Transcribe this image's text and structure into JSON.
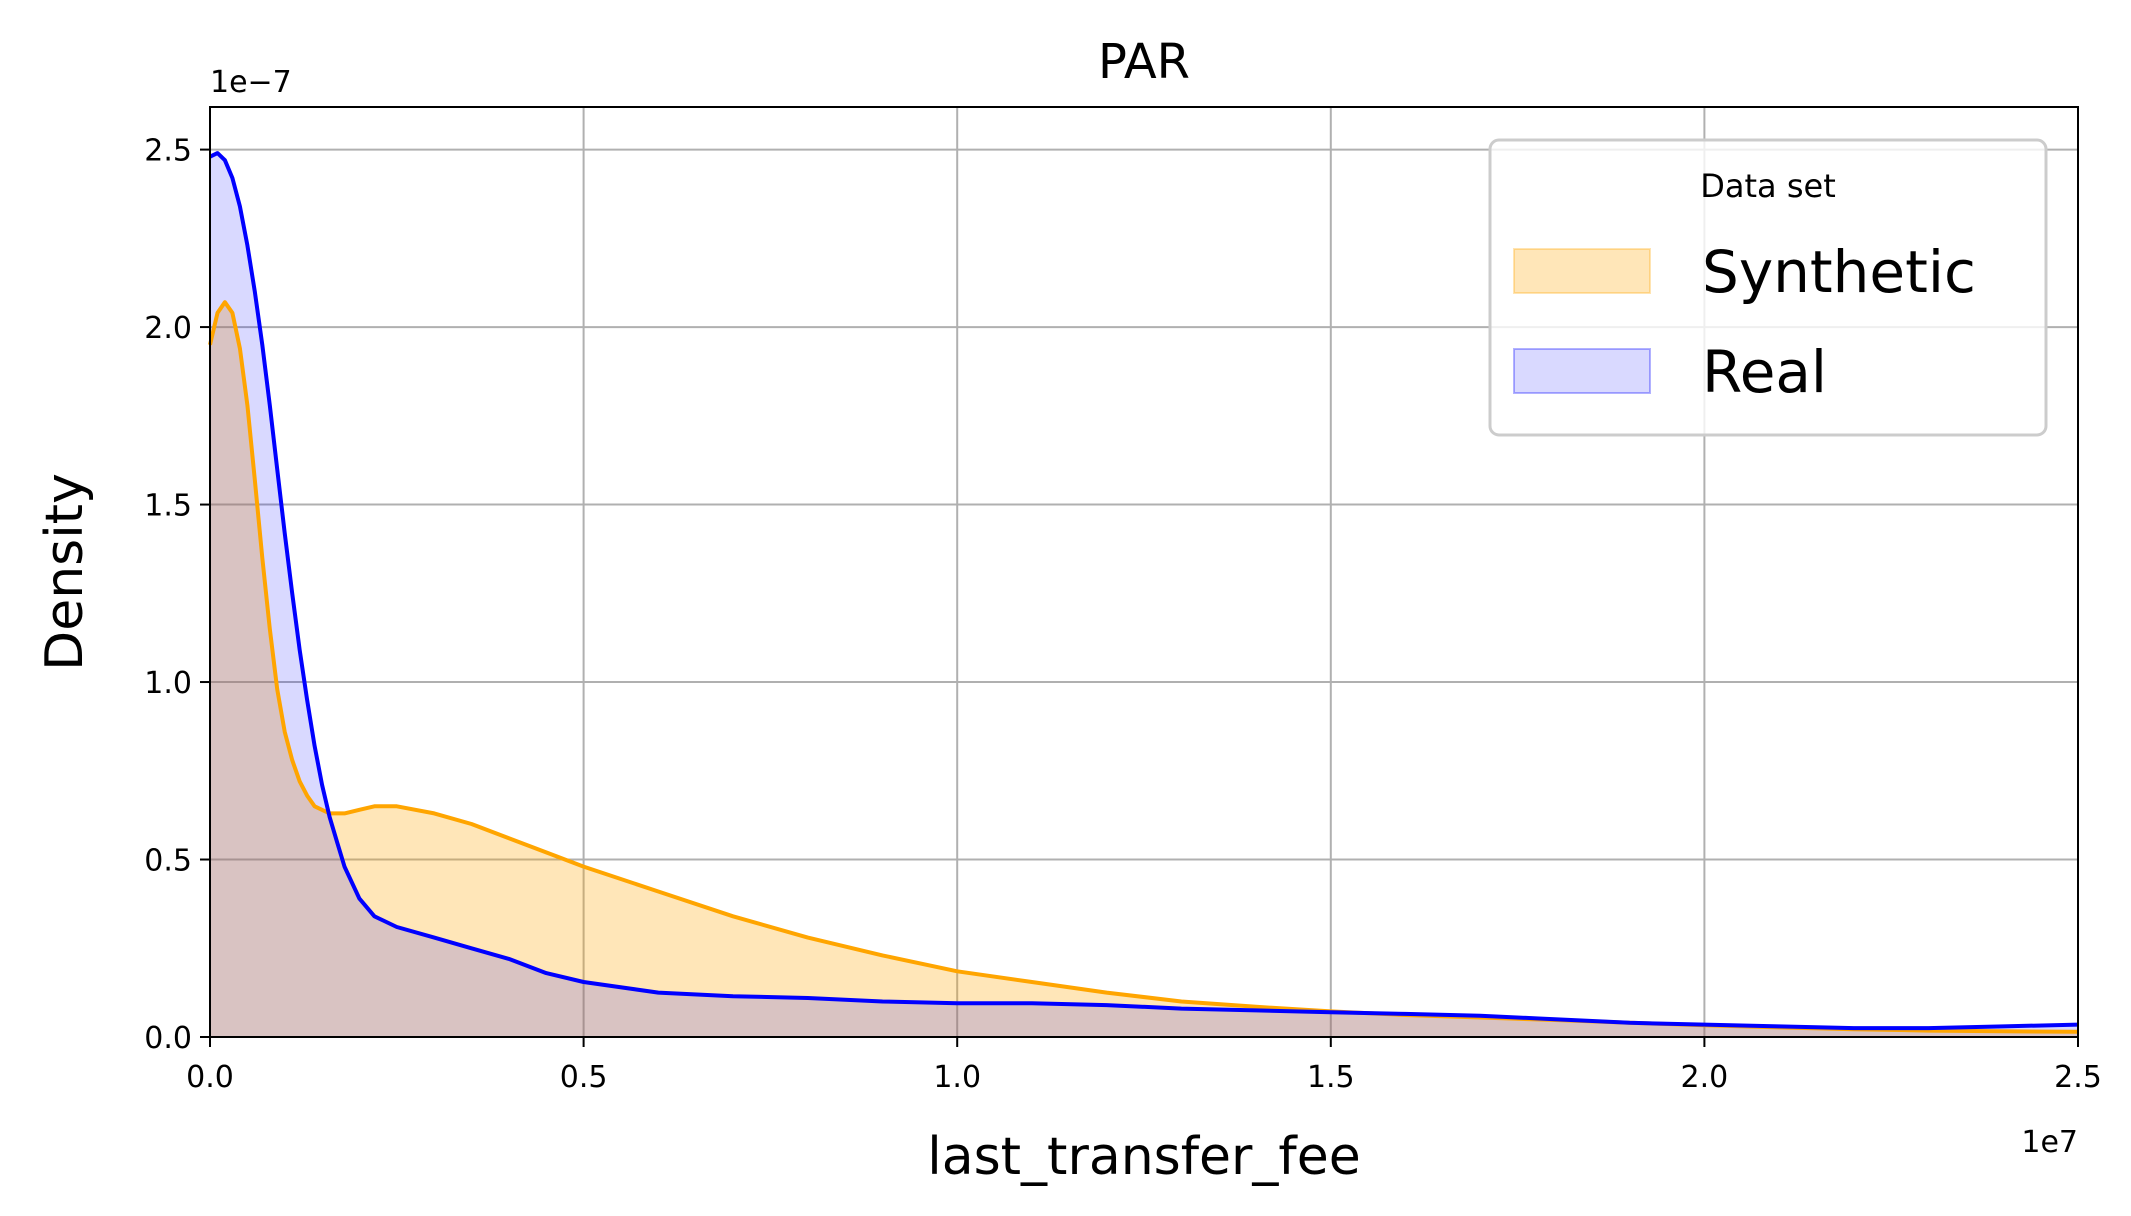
{
  "chart_data": {
    "type": "area",
    "title": "PAR",
    "xlabel": "last_transfer_fee",
    "ylabel": "Density",
    "x_offset_label": "1e7",
    "y_offset_label": "1e−7",
    "xlim": [
      0,
      2.5
    ],
    "ylim": [
      0,
      2.62
    ],
    "x_ticks": [
      0.0,
      0.5,
      1.0,
      1.5,
      2.0,
      2.5
    ],
    "x_tick_labels": [
      "0.0",
      "0.5",
      "1.0",
      "1.5",
      "2.0",
      "2.5"
    ],
    "y_ticks": [
      0.0,
      0.5,
      1.0,
      1.5,
      2.0,
      2.5
    ],
    "y_tick_labels": [
      "0.0",
      "0.5",
      "1.0",
      "1.5",
      "2.0",
      "2.5"
    ],
    "grid": true,
    "legend": {
      "title": "Data set",
      "placement": "top-right",
      "entries": [
        "Synthetic",
        "Real"
      ]
    },
    "series": [
      {
        "name": "Synthetic",
        "line_color": "#ffa500",
        "fill_color": "#ffa500",
        "x": [
          0.0,
          0.01,
          0.02,
          0.03,
          0.04,
          0.05,
          0.06,
          0.07,
          0.08,
          0.09,
          0.1,
          0.11,
          0.12,
          0.13,
          0.14,
          0.16,
          0.18,
          0.2,
          0.22,
          0.25,
          0.3,
          0.35,
          0.4,
          0.45,
          0.5,
          0.6,
          0.7,
          0.8,
          0.9,
          1.0,
          1.1,
          1.2,
          1.3,
          1.4,
          1.5,
          1.6,
          1.7,
          1.8,
          1.9,
          2.0,
          2.1,
          2.2,
          2.3,
          2.4,
          2.5
        ],
        "y": [
          1.95,
          2.04,
          2.07,
          2.04,
          1.94,
          1.78,
          1.57,
          1.35,
          1.15,
          0.98,
          0.86,
          0.78,
          0.72,
          0.68,
          0.65,
          0.63,
          0.63,
          0.64,
          0.65,
          0.65,
          0.63,
          0.6,
          0.56,
          0.52,
          0.48,
          0.41,
          0.34,
          0.28,
          0.23,
          0.185,
          0.155,
          0.125,
          0.1,
          0.085,
          0.072,
          0.062,
          0.055,
          0.048,
          0.04,
          0.033,
          0.027,
          0.022,
          0.018,
          0.016,
          0.015
        ]
      },
      {
        "name": "Real",
        "line_color": "#0000ff",
        "fill_color": "#0000ff",
        "x": [
          0.0,
          0.01,
          0.02,
          0.03,
          0.04,
          0.05,
          0.06,
          0.07,
          0.08,
          0.09,
          0.1,
          0.11,
          0.12,
          0.13,
          0.14,
          0.15,
          0.16,
          0.17,
          0.18,
          0.2,
          0.22,
          0.25,
          0.3,
          0.35,
          0.4,
          0.45,
          0.5,
          0.6,
          0.7,
          0.8,
          0.9,
          1.0,
          1.1,
          1.2,
          1.3,
          1.4,
          1.5,
          1.6,
          1.7,
          1.8,
          1.9,
          2.0,
          2.1,
          2.2,
          2.3,
          2.4,
          2.5
        ],
        "y": [
          2.48,
          2.49,
          2.47,
          2.42,
          2.34,
          2.23,
          2.1,
          1.95,
          1.78,
          1.6,
          1.42,
          1.25,
          1.09,
          0.95,
          0.82,
          0.71,
          0.62,
          0.55,
          0.48,
          0.39,
          0.34,
          0.31,
          0.28,
          0.25,
          0.22,
          0.18,
          0.155,
          0.125,
          0.115,
          0.11,
          0.1,
          0.095,
          0.095,
          0.09,
          0.08,
          0.075,
          0.07,
          0.065,
          0.06,
          0.05,
          0.04,
          0.035,
          0.03,
          0.025,
          0.025,
          0.03,
          0.035
        ]
      }
    ]
  }
}
